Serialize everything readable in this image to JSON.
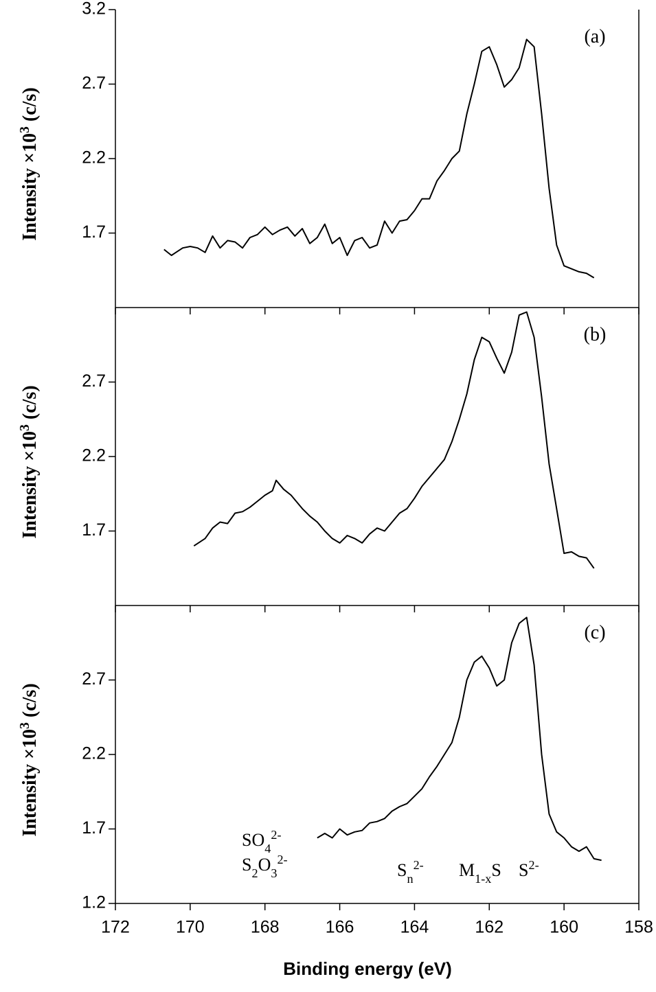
{
  "chart_data": [
    {
      "type": "line",
      "panel_label": "(a)",
      "ylabel": [
        {
          "text": "Intensity ×10"
        },
        {
          "text": "3",
          "pos": "sup"
        },
        {
          "text": "(c/s)"
        }
      ],
      "xlim": [
        172,
        158
      ],
      "xticks": [
        172,
        170,
        168,
        166,
        164,
        162,
        160,
        158
      ],
      "xtick_labels": false,
      "ylim": [
        1.2,
        3.2
      ],
      "yticks": [
        1.7,
        2.2,
        2.7,
        3.2
      ],
      "color": "#000000",
      "x": [
        170.7,
        170.5,
        170.2,
        170.0,
        169.8,
        169.6,
        169.4,
        169.2,
        169.0,
        168.8,
        168.6,
        168.4,
        168.2,
        168.0,
        167.8,
        167.6,
        167.4,
        167.2,
        167.0,
        166.8,
        166.6,
        166.4,
        166.2,
        166.0,
        165.8,
        165.6,
        165.4,
        165.2,
        165.0,
        164.8,
        164.6,
        164.4,
        164.2,
        164.0,
        163.8,
        163.6,
        163.4,
        163.2,
        163.0,
        162.8,
        162.6,
        162.4,
        162.2,
        162.0,
        161.8,
        161.6,
        161.4,
        161.2,
        161.0,
        160.8,
        160.6,
        160.4,
        160.2,
        160.0,
        159.8,
        159.6,
        159.4,
        159.2
      ],
      "values": [
        1.59,
        1.55,
        1.6,
        1.61,
        1.6,
        1.57,
        1.68,
        1.6,
        1.65,
        1.64,
        1.6,
        1.67,
        1.69,
        1.74,
        1.69,
        1.72,
        1.74,
        1.68,
        1.73,
        1.63,
        1.67,
        1.76,
        1.63,
        1.67,
        1.55,
        1.65,
        1.67,
        1.6,
        1.62,
        1.78,
        1.7,
        1.78,
        1.79,
        1.85,
        1.93,
        1.93,
        2.05,
        2.12,
        2.2,
        2.25,
        2.5,
        2.7,
        2.92,
        2.95,
        2.83,
        2.68,
        2.73,
        2.81,
        3.0,
        2.95,
        2.5,
        2.0,
        1.62,
        1.48,
        1.46,
        1.44,
        1.43,
        1.4
      ]
    },
    {
      "type": "line",
      "panel_label": "(b)",
      "ylabel": [
        {
          "text": "Intensity ×10"
        },
        {
          "text": "3",
          "pos": "sup"
        },
        {
          "text": "(c/s)"
        }
      ],
      "xlim": [
        172,
        158
      ],
      "xticks": [
        172,
        170,
        168,
        166,
        164,
        162,
        160,
        158
      ],
      "xtick_labels": false,
      "ylim": [
        1.2,
        3.2
      ],
      "yticks": [
        1.7,
        2.2,
        2.7
      ],
      "color": "#000000",
      "x": [
        169.9,
        169.6,
        169.4,
        169.2,
        169.0,
        168.8,
        168.6,
        168.4,
        168.2,
        168.0,
        167.8,
        167.7,
        167.5,
        167.3,
        167.0,
        166.8,
        166.6,
        166.4,
        166.2,
        166.0,
        165.8,
        165.6,
        165.4,
        165.2,
        165.0,
        164.8,
        164.6,
        164.4,
        164.2,
        164.0,
        163.8,
        163.6,
        163.4,
        163.2,
        163.0,
        162.8,
        162.6,
        162.4,
        162.2,
        162.0,
        161.8,
        161.6,
        161.4,
        161.2,
        161.0,
        160.8,
        160.6,
        160.4,
        160.2,
        160.0,
        159.8,
        159.6,
        159.4,
        159.2
      ],
      "values": [
        1.6,
        1.65,
        1.72,
        1.76,
        1.75,
        1.82,
        1.83,
        1.86,
        1.9,
        1.94,
        1.97,
        2.04,
        1.98,
        1.94,
        1.85,
        1.8,
        1.76,
        1.7,
        1.65,
        1.62,
        1.67,
        1.65,
        1.62,
        1.68,
        1.72,
        1.7,
        1.76,
        1.82,
        1.85,
        1.92,
        2.0,
        2.06,
        2.12,
        2.18,
        2.3,
        2.45,
        2.62,
        2.85,
        3.0,
        2.97,
        2.86,
        2.76,
        2.9,
        3.15,
        3.17,
        3.0,
        2.6,
        2.15,
        1.85,
        1.55,
        1.56,
        1.53,
        1.52,
        1.45
      ]
    },
    {
      "type": "line",
      "panel_label": "(c)",
      "ylabel": [
        {
          "text": "Intensity ×10"
        },
        {
          "text": "3",
          "pos": "sup"
        },
        {
          "text": "(c/s)"
        }
      ],
      "xlabel": "Binding energy (eV)",
      "xlim": [
        172,
        158
      ],
      "xticks": [
        172,
        170,
        168,
        166,
        164,
        162,
        160,
        158
      ],
      "xtick_labels": true,
      "ylim": [
        1.2,
        3.2
      ],
      "yticks": [
        1.2,
        1.7,
        2.2,
        2.7
      ],
      "color": "#000000",
      "x": [
        166.6,
        166.4,
        166.2,
        166.0,
        165.8,
        165.6,
        165.4,
        165.2,
        165.0,
        164.8,
        164.6,
        164.4,
        164.2,
        164.0,
        163.8,
        163.6,
        163.4,
        163.2,
        163.0,
        162.8,
        162.6,
        162.4,
        162.2,
        162.0,
        161.8,
        161.6,
        161.4,
        161.2,
        161.0,
        160.8,
        160.6,
        160.4,
        160.2,
        160.0,
        159.8,
        159.6,
        159.4,
        159.2,
        159.0
      ],
      "values": [
        1.64,
        1.67,
        1.64,
        1.7,
        1.66,
        1.68,
        1.69,
        1.74,
        1.75,
        1.77,
        1.82,
        1.85,
        1.87,
        1.92,
        1.97,
        2.05,
        2.12,
        2.2,
        2.28,
        2.45,
        2.7,
        2.82,
        2.86,
        2.78,
        2.66,
        2.7,
        2.95,
        3.08,
        3.12,
        2.8,
        2.2,
        1.8,
        1.68,
        1.64,
        1.58,
        1.55,
        1.58,
        1.5,
        1.49
      ],
      "annotations": [
        [
          {
            "text": "SO"
          },
          {
            "text": "4",
            "pos": "sub"
          },
          {
            "text": "2-",
            "pos": "sup"
          }
        ],
        [
          {
            "text": "S"
          },
          {
            "text": "2",
            "pos": "sub"
          },
          {
            "text": "O"
          },
          {
            "text": "3",
            "pos": "sub"
          },
          {
            "text": "2-",
            "pos": "sup"
          }
        ],
        [
          {
            "text": "S"
          },
          {
            "text": "n",
            "pos": "sub"
          },
          {
            "text": "2-",
            "pos": "sup"
          }
        ],
        [
          {
            "text": "M"
          },
          {
            "text": "1-x",
            "pos": "sub"
          },
          {
            "text": "S"
          }
        ],
        [
          {
            "text": "S"
          },
          {
            "text": "2-",
            "pos": "sup"
          }
        ]
      ]
    }
  ]
}
